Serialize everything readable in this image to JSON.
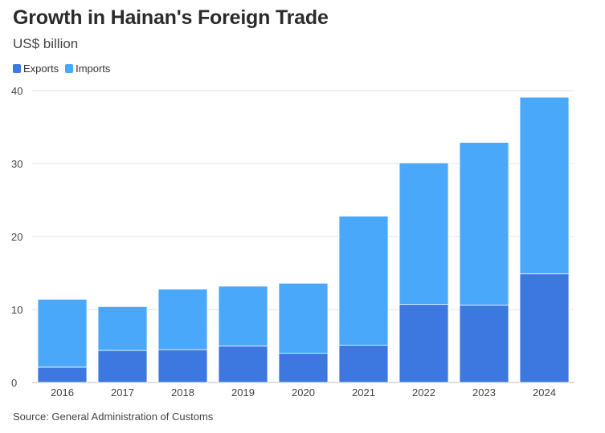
{
  "title": "Growth in Hainan's Foreign Trade",
  "subtitle": "US$ billion",
  "source": "Source: General Administration of Customs",
  "legend": [
    {
      "name": "Exports",
      "color": "#3c78e0"
    },
    {
      "name": "Imports",
      "color": "#4aa8fb"
    }
  ],
  "chart_data": {
    "type": "bar",
    "stacked": true,
    "title": "Growth in Hainan's Foreign Trade",
    "subtitle": "US$ billion",
    "categories": [
      "2016",
      "2017",
      "2018",
      "2019",
      "2020",
      "2021",
      "2022",
      "2023",
      "2024"
    ],
    "series": [
      {
        "name": "Exports",
        "color": "#3c78e0",
        "values": [
          2.1,
          4.4,
          4.5,
          5.0,
          4.0,
          5.1,
          10.7,
          10.6,
          14.9
        ]
      },
      {
        "name": "Imports",
        "color": "#4aa8fb",
        "values": [
          9.3,
          6.0,
          8.3,
          8.2,
          9.6,
          17.7,
          19.4,
          22.3,
          24.2
        ]
      }
    ],
    "ylim": [
      0,
      40
    ],
    "yticks": [
      0,
      10,
      20,
      30,
      40
    ],
    "grid": true,
    "legend_position": "top-left"
  }
}
